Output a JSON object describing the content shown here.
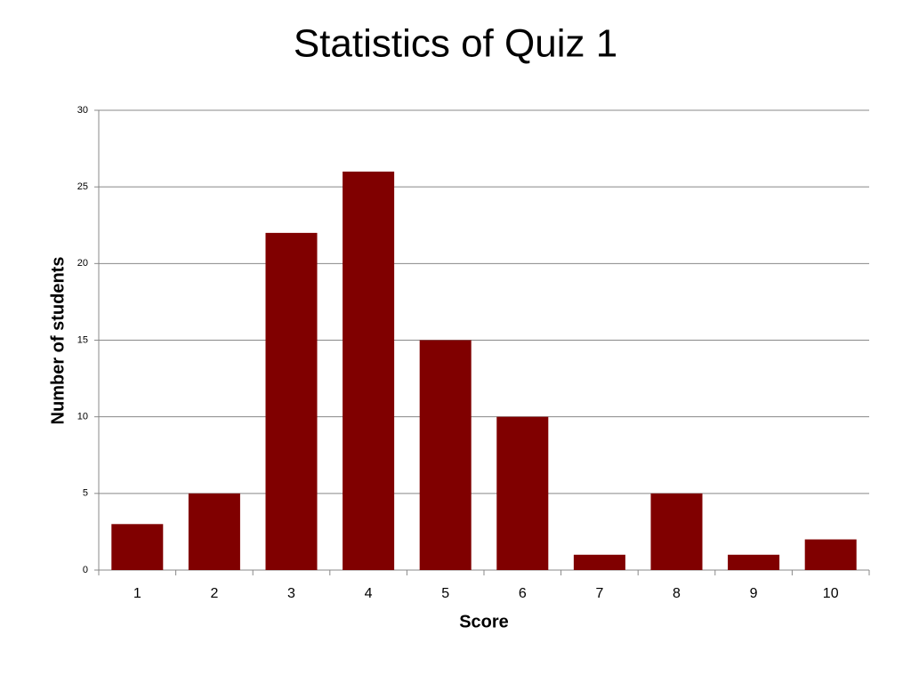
{
  "chart_data": {
    "type": "bar",
    "title": "Statistics of Quiz 1",
    "x_label": "Score",
    "y_label": "Number of students",
    "categories": [
      "1",
      "2",
      "3",
      "4",
      "5",
      "6",
      "7",
      "8",
      "9",
      "10"
    ],
    "values": [
      3,
      5,
      22,
      26,
      15,
      10,
      1,
      5,
      1,
      2
    ],
    "color": "#800000",
    "ylim": [
      0,
      30
    ],
    "yticks": [
      0,
      5,
      10,
      15,
      20,
      25,
      30
    ],
    "grid": true
  }
}
